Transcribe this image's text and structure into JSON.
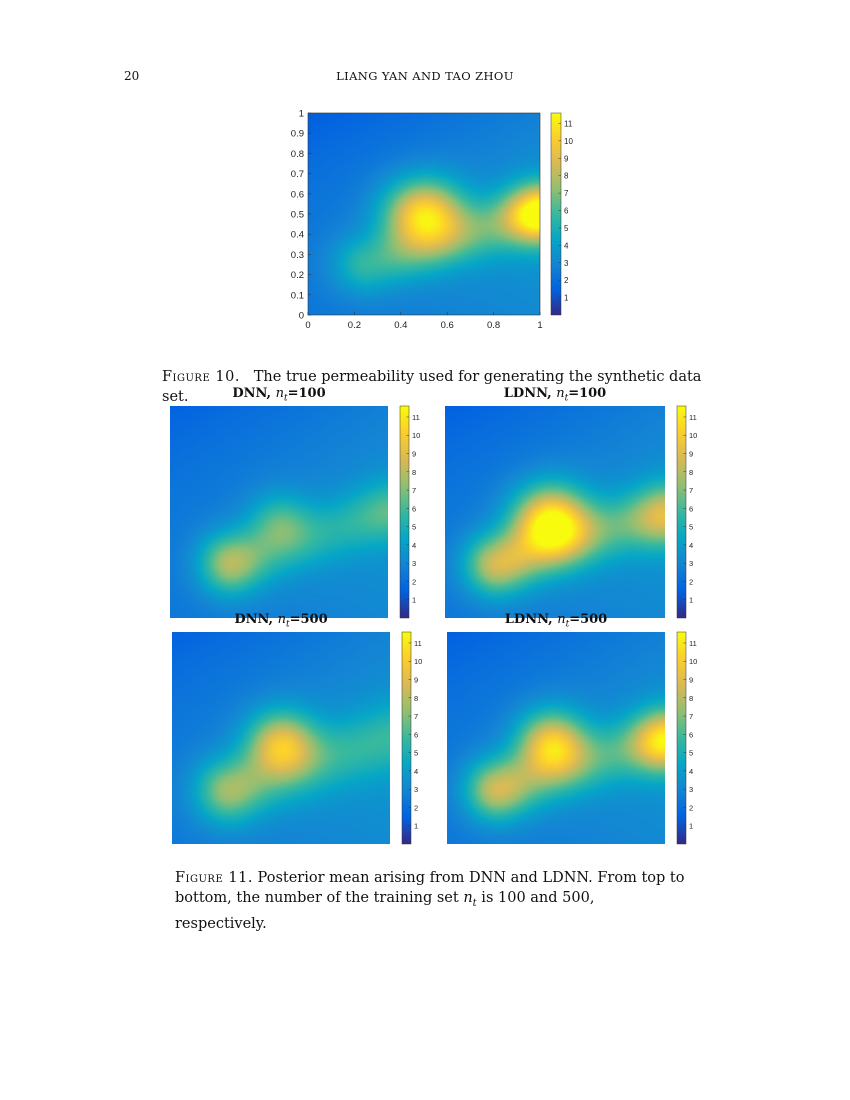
{
  "header": {
    "page_number": "20",
    "running_title": "LIANG YAN AND TAO ZHOU"
  },
  "colormap": {
    "name": "parula",
    "stops": [
      "#352a87",
      "#0363e1",
      "#1485d4",
      "#06a7c6",
      "#38b99e",
      "#92bf73",
      "#d9ba56",
      "#fcce2e",
      "#f9fb0e"
    ],
    "range": [
      0,
      11.6
    ]
  },
  "figure10": {
    "label": "Figure 10.",
    "caption": "The true permeability used for generating the synthetic data set.",
    "x_ticks": [
      "0",
      "0.2",
      "0.4",
      "0.6",
      "0.8",
      "1"
    ],
    "y_ticks": [
      "0",
      "0.1",
      "0.2",
      "0.3",
      "0.4",
      "0.5",
      "0.6",
      "0.7",
      "0.8",
      "0.9",
      "1"
    ],
    "colorbar_ticks": [
      "1",
      "2",
      "3",
      "4",
      "5",
      "6",
      "7",
      "8",
      "9",
      "10",
      "11"
    ]
  },
  "figure11": {
    "label": "Figure 11.",
    "caption_line1": "Posterior mean arising from DNN and LDNN. From top to",
    "caption_line2_pre": "bottom, the number of the training set ",
    "caption_var": "n",
    "caption_sub": "t",
    "caption_line2_post": " is 100 and 500, respectively.",
    "colorbar_ticks": [
      "1",
      "2",
      "3",
      "4",
      "5",
      "6",
      "7",
      "8",
      "9",
      "10",
      "11"
    ],
    "panels": [
      {
        "method": "DNN,",
        "var": "n",
        "sub": "t",
        "value": "=100"
      },
      {
        "method": "LDNN,",
        "var": "n",
        "sub": "t",
        "value": "=100"
      },
      {
        "method": "DNN,",
        "var": "n",
        "sub": "t",
        "value": "=500"
      },
      {
        "method": "LDNN,",
        "var": "n",
        "sub": "t",
        "value": "=500"
      }
    ]
  },
  "chart_data": [
    {
      "type": "heatmap",
      "title": "",
      "xlabel": "",
      "ylabel": "",
      "xlim": [
        0,
        1
      ],
      "ylim": [
        0,
        1
      ],
      "clim": [
        0,
        11.6
      ],
      "field": {
        "base": 2.6,
        "gradient": 1.6,
        "ridge": {
          "from": [
            0.25,
            0.25
          ],
          "to": [
            1.0,
            0.5
          ],
          "amp": 3.0,
          "sigma": 0.1
        },
        "bumps": [
          {
            "x": 0.5,
            "y": 0.5,
            "amp": 7.5,
            "sigma": 0.12
          },
          {
            "x": 1.0,
            "y": 0.5,
            "amp": 7.0,
            "sigma": 0.1
          }
        ]
      }
    },
    {
      "type": "heatmap",
      "title": "DNN, n_t=100",
      "xlim": [
        0,
        1
      ],
      "ylim": [
        0,
        1
      ],
      "clim": [
        0,
        11.6
      ],
      "field": {
        "base": 2.6,
        "gradient": 1.4,
        "ridge": {
          "from": [
            0.28,
            0.25
          ],
          "to": [
            1.0,
            0.5
          ],
          "amp": 2.2,
          "sigma": 0.1
        },
        "bumps": [
          {
            "x": 0.28,
            "y": 0.26,
            "amp": 3.2,
            "sigma": 0.1
          },
          {
            "x": 0.5,
            "y": 0.45,
            "amp": 2.8,
            "sigma": 0.1
          },
          {
            "x": 1.0,
            "y": 0.5,
            "amp": 1.0,
            "sigma": 0.1
          }
        ]
      }
    },
    {
      "type": "heatmap",
      "title": "LDNN, n_t=100",
      "xlim": [
        0,
        1
      ],
      "ylim": [
        0,
        1
      ],
      "clim": [
        0,
        11.6
      ],
      "field": {
        "base": 2.6,
        "gradient": 1.5,
        "ridge": {
          "from": [
            0.22,
            0.25
          ],
          "to": [
            1.0,
            0.5
          ],
          "amp": 3.0,
          "sigma": 0.1
        },
        "bumps": [
          {
            "x": 0.48,
            "y": 0.45,
            "amp": 8.5,
            "sigma": 0.12
          },
          {
            "x": 0.25,
            "y": 0.25,
            "amp": 3.0,
            "sigma": 0.1
          },
          {
            "x": 1.0,
            "y": 0.47,
            "amp": 3.0,
            "sigma": 0.1
          }
        ]
      }
    },
    {
      "type": "heatmap",
      "title": "DNN,n_t=500",
      "xlim": [
        0,
        1
      ],
      "ylim": [
        0,
        1
      ],
      "clim": [
        0,
        11.6
      ],
      "field": {
        "base": 2.7,
        "gradient": 1.5,
        "ridge": {
          "from": [
            0.25,
            0.25
          ],
          "to": [
            1.0,
            0.5
          ],
          "amp": 2.4,
          "sigma": 0.11
        },
        "bumps": [
          {
            "x": 0.5,
            "y": 0.47,
            "amp": 6.0,
            "sigma": 0.11
          },
          {
            "x": 0.27,
            "y": 0.25,
            "amp": 2.5,
            "sigma": 0.1
          }
        ]
      }
    },
    {
      "type": "heatmap",
      "title": "LDNN, n_t=500",
      "xlim": [
        0,
        1
      ],
      "ylim": [
        0,
        1
      ],
      "clim": [
        0,
        11.6
      ],
      "field": {
        "base": 2.6,
        "gradient": 1.5,
        "ridge": {
          "from": [
            0.22,
            0.25
          ],
          "to": [
            1.0,
            0.5
          ],
          "amp": 2.8,
          "sigma": 0.1
        },
        "bumps": [
          {
            "x": 0.48,
            "y": 0.47,
            "amp": 6.8,
            "sigma": 0.11
          },
          {
            "x": 0.24,
            "y": 0.26,
            "amp": 3.2,
            "sigma": 0.1
          },
          {
            "x": 1.0,
            "y": 0.48,
            "amp": 5.5,
            "sigma": 0.1
          }
        ]
      }
    }
  ]
}
